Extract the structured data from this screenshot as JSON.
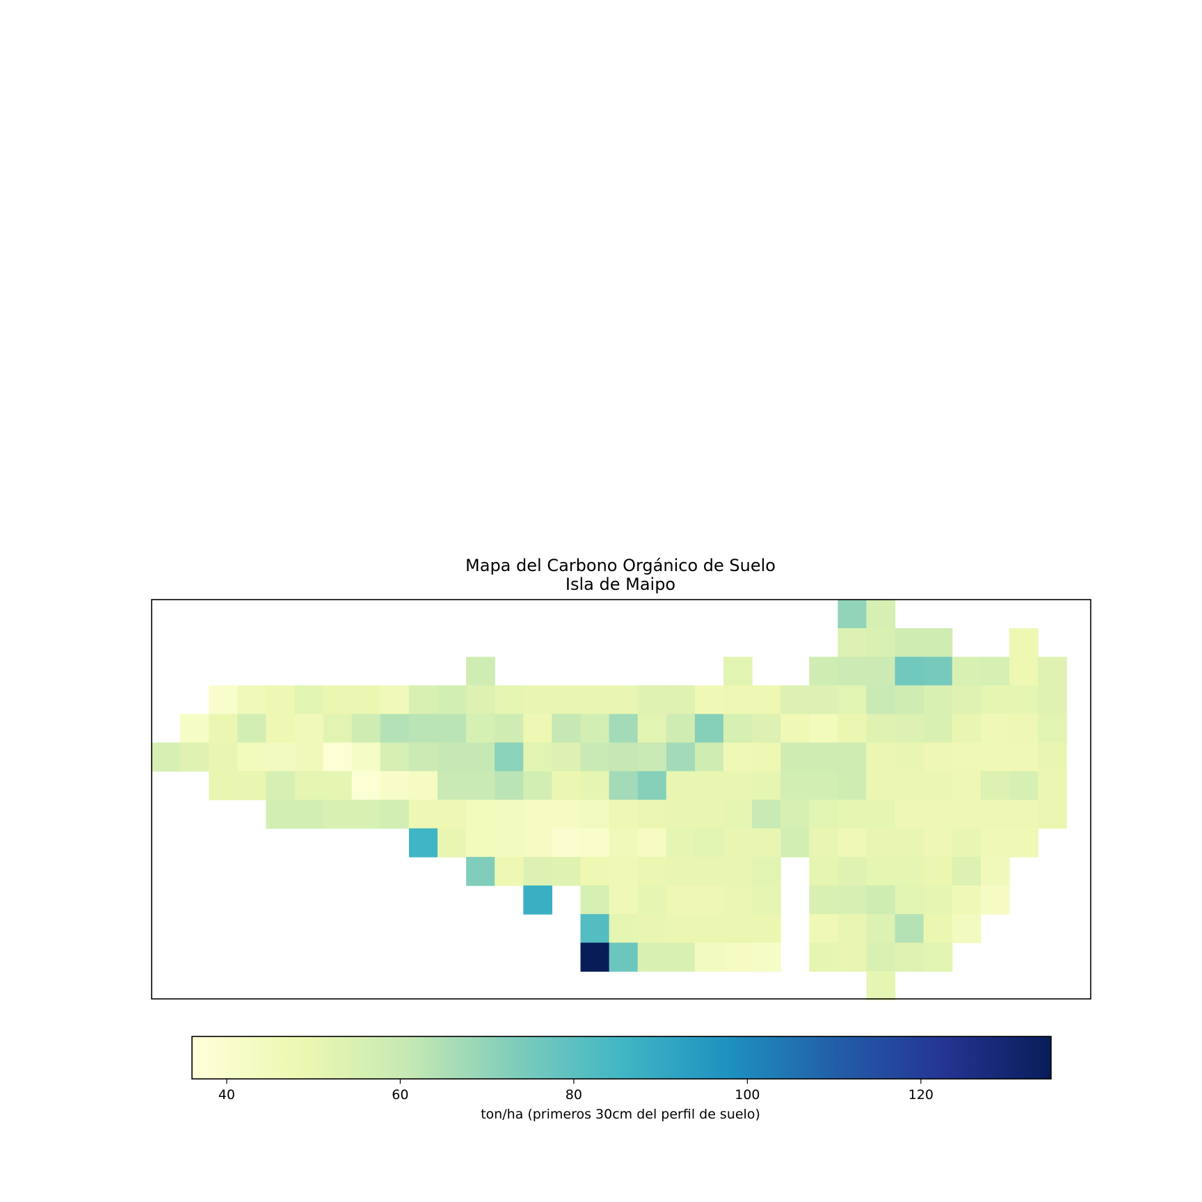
{
  "chart_data": {
    "type": "heatmap",
    "title": "Mapa del Carbono Orgánico de Suelo",
    "subtitle": "Isla de Maipo",
    "colormap": "YlGnBu",
    "colormap_stops": [
      "#ffffd9",
      "#edf8b1",
      "#c7e9b4",
      "#7fcdbb",
      "#41b6c4",
      "#1d91c0",
      "#225ea8",
      "#253494",
      "#081d58"
    ],
    "vmin": 36,
    "vmax": 135,
    "colorbar": {
      "label": "ton/ha (primeros 30cm del perfil de suelo)",
      "ticks": [
        40,
        60,
        80,
        100,
        120
      ],
      "orientation": "horizontal"
    },
    "n_cols": 32,
    "n_rows": 14,
    "grid": [
      [
        null,
        null,
        null,
        null,
        null,
        null,
        null,
        null,
        null,
        null,
        null,
        null,
        null,
        null,
        null,
        null,
        null,
        null,
        null,
        null,
        null,
        null,
        null,
        null,
        70,
        56,
        null,
        null,
        null,
        null,
        null,
        null
      ],
      [
        null,
        null,
        null,
        null,
        null,
        null,
        null,
        null,
        null,
        null,
        null,
        null,
        null,
        null,
        null,
        null,
        null,
        null,
        null,
        null,
        null,
        null,
        null,
        null,
        54,
        55,
        58,
        58,
        null,
        null,
        48,
        null
      ],
      [
        null,
        null,
        null,
        null,
        null,
        null,
        null,
        null,
        null,
        null,
        null,
        58,
        null,
        null,
        null,
        null,
        null,
        null,
        null,
        null,
        52,
        null,
        null,
        58,
        59,
        59,
        76,
        75,
        55,
        56,
        48,
        53
      ],
      [
        null,
        null,
        40,
        46,
        48,
        52,
        49,
        49,
        46,
        55,
        57,
        54,
        51,
        50,
        50,
        50,
        50,
        53,
        53,
        47,
        48,
        48,
        54,
        54,
        52,
        60,
        58,
        55,
        53,
        51,
        51,
        53
      ],
      [
        null,
        42,
        49,
        57,
        48,
        46,
        52,
        58,
        64,
        63,
        63,
        56,
        58,
        48,
        61,
        57,
        67,
        52,
        58,
        72,
        56,
        54,
        47,
        45,
        49,
        53,
        54,
        55,
        50,
        47,
        48,
        52
      ],
      [
        56,
        53,
        50,
        45,
        44,
        46,
        38,
        42,
        56,
        59,
        61,
        61,
        71,
        52,
        54,
        60,
        61,
        60,
        67,
        58,
        47,
        48,
        58,
        58,
        58,
        49,
        50,
        48,
        47,
        47,
        47,
        50
      ],
      [
        null,
        null,
        50,
        50,
        56,
        51,
        51,
        38,
        41,
        43,
        60,
        60,
        63,
        57,
        49,
        51,
        67,
        72,
        50,
        50,
        50,
        51,
        57,
        57,
        58,
        49,
        49,
        49,
        48,
        54,
        56,
        49
      ],
      [
        null,
        null,
        null,
        null,
        57,
        57,
        55,
        55,
        57,
        48,
        48,
        45,
        44,
        43,
        43,
        44,
        48,
        49,
        50,
        50,
        51,
        60,
        56,
        52,
        51,
        51,
        48,
        48,
        48,
        48,
        48,
        49
      ],
      [
        null,
        null,
        null,
        null,
        null,
        null,
        null,
        null,
        null,
        86,
        50,
        45,
        44,
        43,
        39,
        40,
        46,
        43,
        51,
        52,
        50,
        50,
        57,
        50,
        47,
        50,
        50,
        48,
        50,
        47,
        47,
        null
      ],
      [
        null,
        null,
        null,
        null,
        null,
        null,
        null,
        null,
        null,
        null,
        null,
        73,
        48,
        54,
        53,
        48,
        47,
        49,
        50,
        50,
        50,
        52,
        null,
        51,
        53,
        51,
        51,
        49,
        54,
        46,
        null,
        null
      ],
      [
        null,
        null,
        null,
        null,
        null,
        null,
        null,
        null,
        null,
        null,
        null,
        null,
        null,
        88,
        null,
        56,
        47,
        51,
        48,
        48,
        49,
        51,
        null,
        55,
        56,
        58,
        52,
        51,
        47,
        43,
        null,
        null
      ],
      [
        null,
        null,
        null,
        null,
        null,
        null,
        null,
        null,
        null,
        null,
        null,
        null,
        null,
        null,
        null,
        82,
        51,
        50,
        49,
        49,
        49,
        49,
        null,
        47,
        50,
        54,
        64,
        49,
        44,
        null,
        null,
        null
      ],
      [
        null,
        null,
        null,
        null,
        null,
        null,
        null,
        null,
        null,
        null,
        null,
        null,
        null,
        null,
        null,
        135,
        77,
        55,
        55,
        44,
        43,
        42,
        null,
        51,
        50,
        55,
        53,
        52,
        null,
        null,
        null,
        null
      ],
      [
        null,
        null,
        null,
        null,
        null,
        null,
        null,
        null,
        null,
        null,
        null,
        null,
        null,
        null,
        null,
        null,
        null,
        null,
        null,
        null,
        null,
        null,
        null,
        null,
        null,
        51,
        null,
        null,
        null,
        null,
        null,
        null
      ]
    ]
  }
}
